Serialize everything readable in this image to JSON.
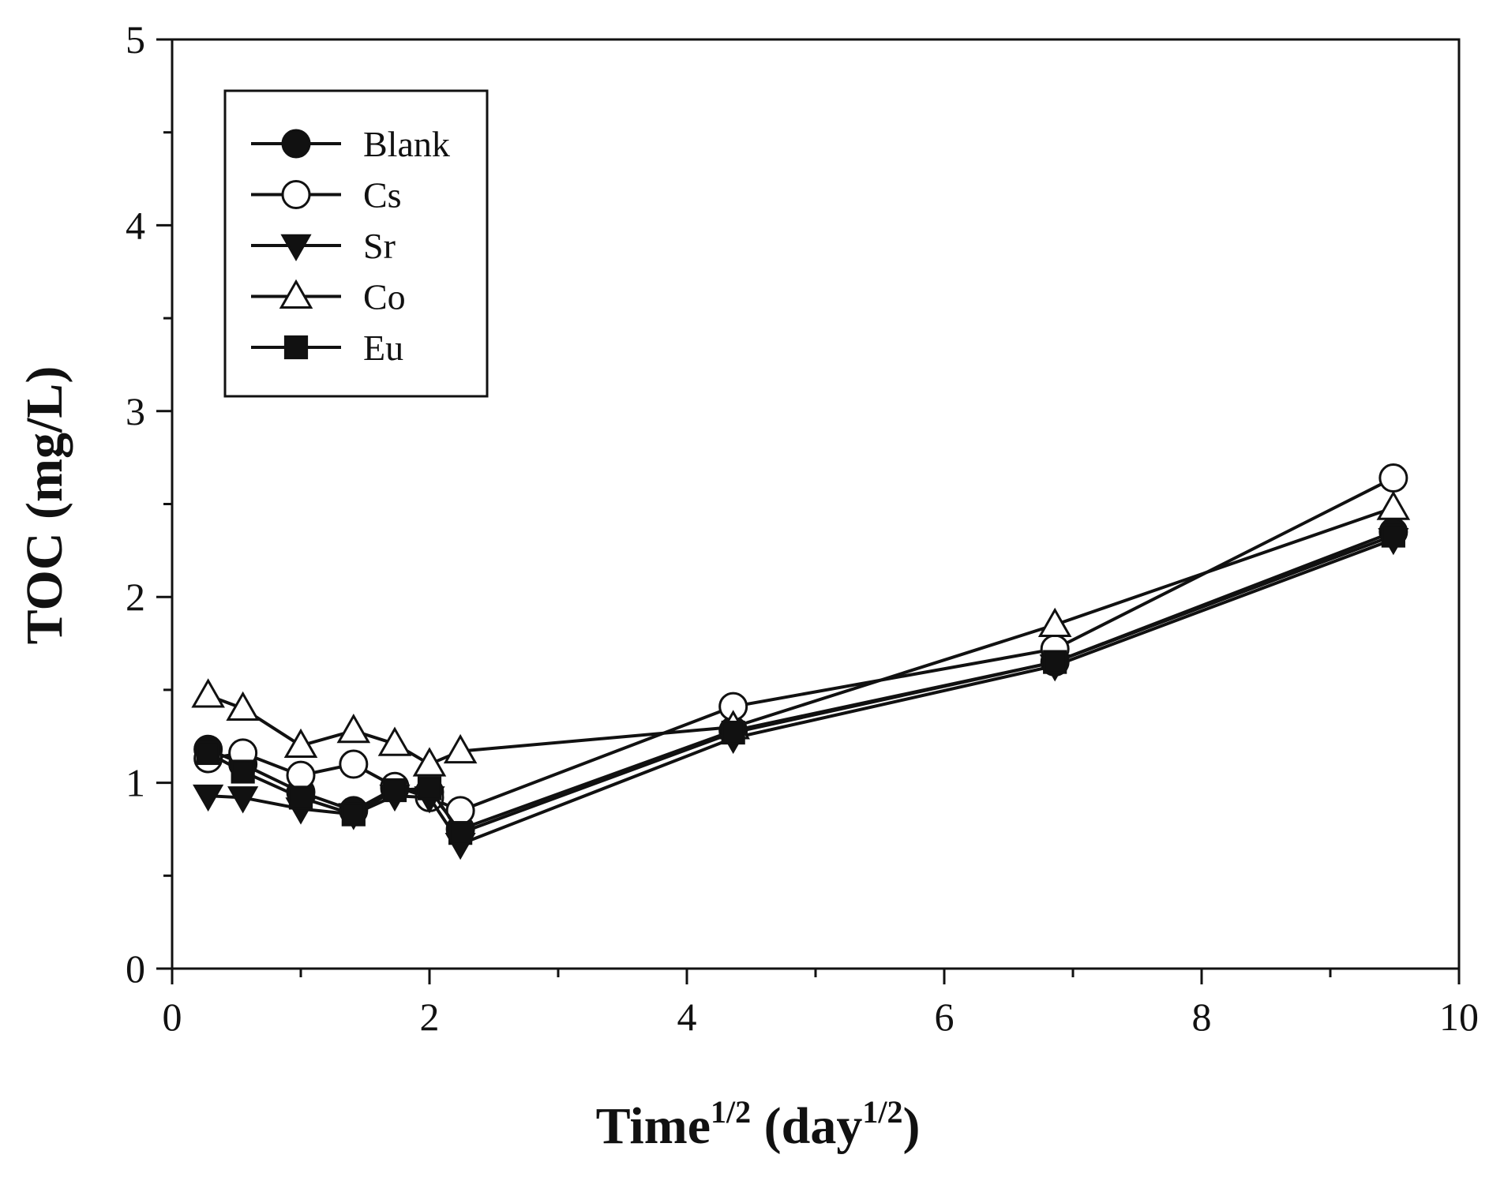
{
  "chart_data": {
    "type": "line",
    "title": "",
    "xlabel": {
      "main": "Time",
      "sup": "1/2",
      "unit_open": " (day",
      "unit_sup": "1/2",
      "unit_close": ")"
    },
    "ylabel": "TOC (mg/L)",
    "xlim": [
      0,
      10
    ],
    "ylim": [
      0,
      5
    ],
    "x_ticks": [
      0,
      2,
      4,
      6,
      8,
      10
    ],
    "y_ticks": [
      0,
      1,
      2,
      3,
      4,
      5
    ],
    "grid": false,
    "legend_position": "top-left",
    "series": [
      {
        "name": "Blank",
        "marker": "circle-filled",
        "x": [
          0.28,
          0.55,
          1.0,
          1.41,
          1.73,
          2.0,
          2.24,
          4.36,
          6.86,
          9.49
        ],
        "y": [
          1.18,
          1.1,
          0.95,
          0.85,
          0.97,
          0.95,
          0.75,
          1.28,
          1.65,
          2.35
        ]
      },
      {
        "name": "Cs",
        "marker": "circle-open",
        "x": [
          0.28,
          0.55,
          1.0,
          1.41,
          1.73,
          2.0,
          2.24,
          4.36,
          6.86,
          9.49
        ],
        "y": [
          1.13,
          1.16,
          1.04,
          1.1,
          0.98,
          0.92,
          0.85,
          1.41,
          1.72,
          2.64
        ]
      },
      {
        "name": "Sr",
        "marker": "triangle-down-filled",
        "x": [
          0.28,
          0.55,
          1.0,
          1.41,
          1.73,
          2.0,
          2.24,
          4.36,
          6.86,
          9.49
        ],
        "y": [
          0.93,
          0.92,
          0.86,
          0.83,
          0.93,
          0.92,
          0.67,
          1.24,
          1.63,
          2.31
        ]
      },
      {
        "name": "Co",
        "marker": "triangle-up-open",
        "x": [
          0.28,
          0.55,
          1.0,
          1.41,
          1.73,
          2.0,
          2.24,
          4.36,
          6.86,
          9.49
        ],
        "y": [
          1.47,
          1.4,
          1.2,
          1.28,
          1.21,
          1.1,
          1.17,
          1.3,
          1.85,
          2.48
        ]
      },
      {
        "name": "Eu",
        "marker": "square-filled",
        "x": [
          0.28,
          0.55,
          1.0,
          1.41,
          1.73,
          2.0,
          2.24,
          4.36,
          6.86,
          9.49
        ],
        "y": [
          1.16,
          1.06,
          0.92,
          0.83,
          0.96,
          0.97,
          0.73,
          1.27,
          1.65,
          2.33
        ]
      }
    ]
  }
}
